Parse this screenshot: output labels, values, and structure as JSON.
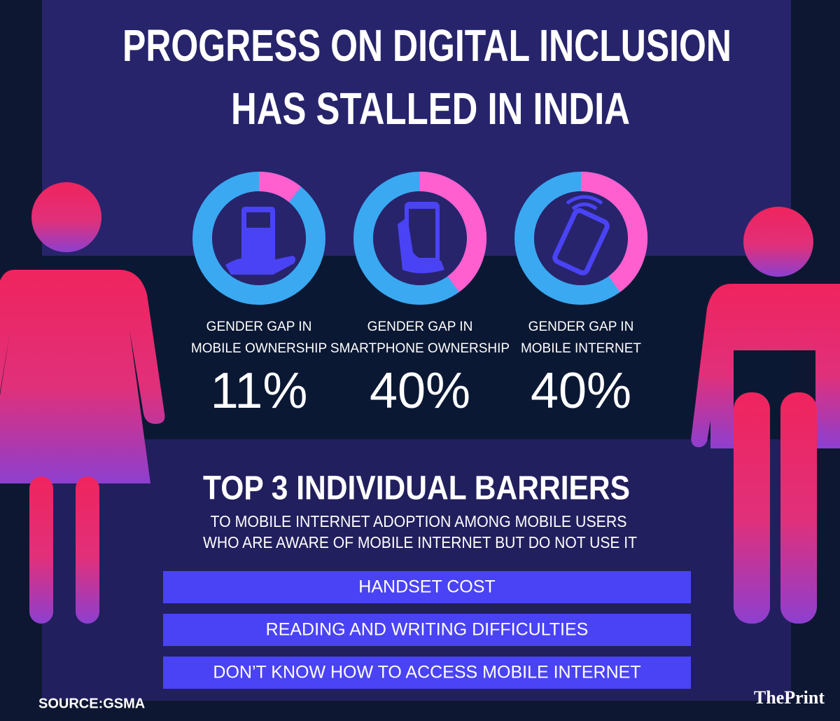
{
  "title_lines": [
    "PROGRESS ON DIGITAL INCLUSION",
    "HAS STALLED IN INDIA"
  ],
  "gaps": [
    {
      "label_lines": [
        "GENDER GAP IN",
        "MOBILE OWNERSHIP"
      ],
      "value": 11,
      "value_label": "11%"
    },
    {
      "label_lines": [
        "GENDER GAP IN",
        "SMARTPHONE OWNERSHIP"
      ],
      "value": 40,
      "value_label": "40%"
    },
    {
      "label_lines": [
        "GENDER GAP IN",
        "MOBILE INTERNET"
      ],
      "value": 40,
      "value_label": "40%"
    }
  ],
  "barriers": {
    "title": "TOP 3 INDIVIDUAL BARRIERS",
    "subtitle_lines": [
      "TO MOBILE INTERNET ADOPTION AMONG MOBILE USERS",
      "WHO ARE AWARE OF MOBILE INTERNET BUT DO NOT USE IT"
    ],
    "items": [
      "HANDSET COST",
      "READING AND WRITING DIFFICULTIES",
      "DON’T KNOW HOW TO ACCESS MOBILE INTERNET"
    ]
  },
  "source": "SOURCE:GSMA",
  "brand": "ThePrint"
}
